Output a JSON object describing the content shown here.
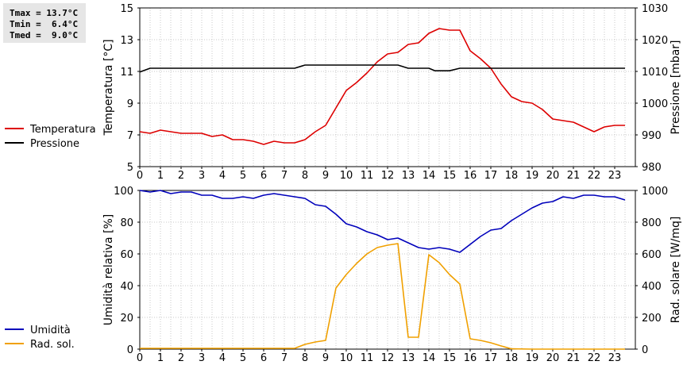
{
  "stats": {
    "tmax": "Tmax = 13.7°C",
    "tmin": "Tmin =  6.4°C",
    "tmed": "Tmed =  9.0°C"
  },
  "chart_data": [
    {
      "type": "line",
      "x_ticks": [
        0,
        1,
        2,
        3,
        4,
        5,
        6,
        7,
        8,
        9,
        10,
        11,
        12,
        13,
        14,
        15,
        16,
        17,
        18,
        19,
        20,
        21,
        22,
        23
      ],
      "y_left": {
        "label": "Temperatura [°C]",
        "range": [
          5,
          15
        ],
        "ticks": [
          5,
          7,
          9,
          11,
          13,
          15
        ]
      },
      "y_right": {
        "label": "Pressione [mbar]",
        "range": [
          980,
          1030
        ],
        "ticks": [
          980,
          990,
          1000,
          1010,
          1020,
          1030
        ]
      },
      "grid": true,
      "legend_placement": "left",
      "series": [
        {
          "name": "Temperatura",
          "axis": "left",
          "color": "#dd0000",
          "x": [
            0,
            0.5,
            1,
            1.5,
            2,
            2.5,
            3,
            3.5,
            4,
            4.5,
            5,
            5.5,
            6,
            6.5,
            7,
            7.5,
            8,
            8.5,
            9,
            9.5,
            10,
            10.5,
            11,
            11.5,
            12,
            12.5,
            13,
            13.5,
            14,
            14.5,
            15,
            15.5,
            16,
            16.5,
            17,
            17.5,
            18,
            18.5,
            19,
            19.5,
            20,
            20.5,
            21,
            21.5,
            22,
            22.5,
            23,
            23.5
          ],
          "y": [
            7.2,
            7.1,
            7.3,
            7.2,
            7.1,
            7.1,
            7.1,
            6.9,
            7.0,
            6.7,
            6.7,
            6.6,
            6.4,
            6.6,
            6.5,
            6.5,
            6.7,
            7.2,
            7.6,
            8.7,
            9.8,
            10.3,
            10.9,
            11.6,
            12.1,
            12.2,
            12.7,
            12.8,
            13.4,
            13.7,
            13.6,
            13.6,
            12.3,
            11.8,
            11.2,
            10.2,
            9.4,
            9.1,
            9.0,
            8.6,
            8.0,
            7.9,
            7.8,
            7.5,
            7.2,
            7.5,
            7.6,
            7.6
          ]
        },
        {
          "name": "Pressione",
          "axis": "right",
          "color": "#000000",
          "x": [
            0,
            0.5,
            1,
            7.5,
            8,
            10,
            12.5,
            13,
            14,
            14.3,
            15,
            15.5,
            16,
            23.5
          ],
          "y": [
            1009.8,
            1011,
            1011,
            1011,
            1012,
            1012,
            1012,
            1011,
            1011,
            1010.2,
            1010.2,
            1011,
            1011,
            1011
          ]
        }
      ]
    },
    {
      "type": "line",
      "x_ticks": [
        0,
        1,
        2,
        3,
        4,
        5,
        6,
        7,
        8,
        9,
        10,
        11,
        12,
        13,
        14,
        15,
        16,
        17,
        18,
        19,
        20,
        21,
        22,
        23
      ],
      "y_left": {
        "label": "Umidità relativa [%]",
        "range": [
          0,
          100
        ],
        "ticks": [
          0,
          20,
          40,
          60,
          80,
          100
        ]
      },
      "y_right": {
        "label": "Rad. solare [W/mq]",
        "range": [
          0,
          1000
        ],
        "ticks": [
          0,
          200,
          400,
          600,
          800,
          1000
        ]
      },
      "grid": true,
      "legend_placement": "left",
      "series": [
        {
          "name": "Umidità",
          "axis": "left",
          "color": "#0000bb",
          "x": [
            0,
            0.5,
            1,
            1.5,
            2,
            2.5,
            3,
            3.5,
            4,
            4.5,
            5,
            5.5,
            6,
            6.5,
            7,
            7.5,
            8,
            8.5,
            9,
            9.5,
            10,
            10.5,
            11,
            11.5,
            12,
            12.5,
            13,
            13.5,
            14,
            14.5,
            15,
            15.5,
            16,
            16.5,
            17,
            17.5,
            18,
            18.5,
            19,
            19.5,
            20,
            20.5,
            21,
            21.5,
            22,
            22.5,
            23,
            23.5
          ],
          "y": [
            100,
            99,
            100,
            98,
            99,
            99,
            97,
            97,
            95,
            95,
            96,
            95,
            97,
            98,
            97,
            96,
            95,
            91,
            90,
            85,
            79,
            77,
            74,
            72,
            69,
            70,
            67,
            64,
            63,
            64,
            63,
            61,
            66,
            71,
            75,
            76,
            81,
            85,
            89,
            92,
            93,
            96,
            95,
            97,
            97,
            96,
            96,
            94
          ]
        },
        {
          "name": "Rad. sol.",
          "axis": "right",
          "color": "#f0a000",
          "x": [
            0,
            1,
            2,
            3,
            4,
            5,
            6,
            7,
            7.5,
            8,
            8.5,
            9,
            9.5,
            10,
            10.5,
            11,
            11.5,
            12,
            12.5,
            13,
            13.5,
            14,
            14.5,
            15,
            15.5,
            16,
            16.5,
            17,
            17.5,
            18,
            19,
            20,
            21,
            22,
            23,
            23.5
          ],
          "y": [
            5,
            5,
            5,
            5,
            5,
            5,
            5,
            5,
            5,
            30,
            45,
            55,
            385,
            470,
            540,
            600,
            640,
            655,
            665,
            75,
            75,
            595,
            545,
            470,
            410,
            65,
            55,
            40,
            20,
            2,
            0,
            0,
            0,
            0,
            0,
            0
          ]
        }
      ]
    }
  ]
}
